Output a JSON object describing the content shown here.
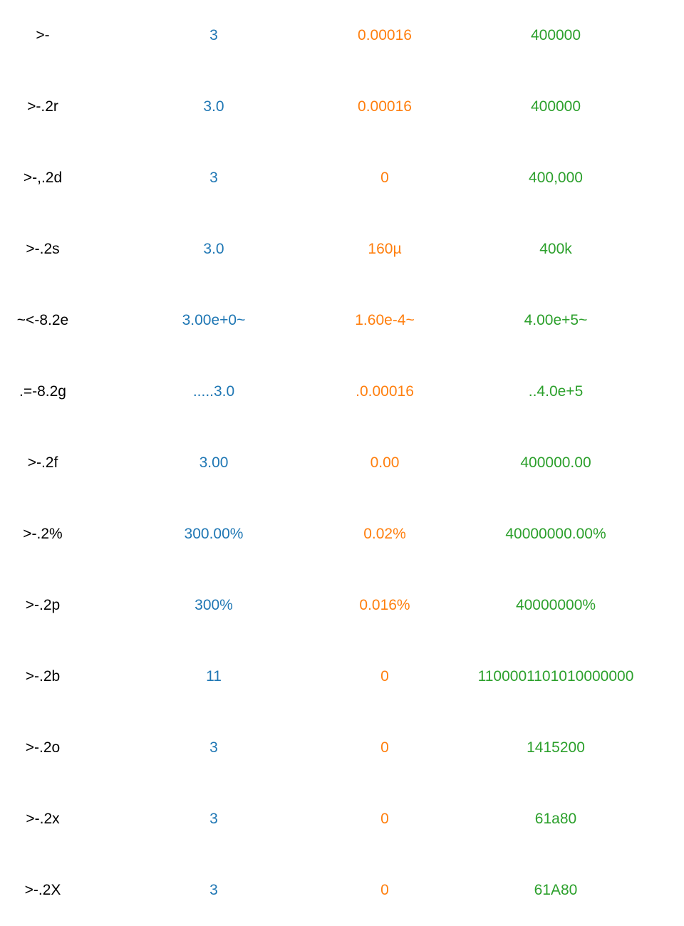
{
  "colors": {
    "spec": "#000000",
    "value_a": "#1f77b4",
    "value_b": "#ff7f0e",
    "value_c": "#2ca02c"
  },
  "rows": [
    {
      "spec": ">-",
      "a": "3",
      "b": "0.00016",
      "c": "400000"
    },
    {
      "spec": ">-.2r",
      "a": "3.0",
      "b": "0.00016",
      "c": "400000"
    },
    {
      "spec": ">-,.2d",
      "a": "3",
      "b": "0",
      "c": "400,000"
    },
    {
      "spec": ">-.2s",
      "a": "3.0",
      "b": "160µ",
      "c": "400k"
    },
    {
      "spec": "~<-8.2e",
      "a": "3.00e+0~",
      "b": "1.60e-4~",
      "c": "4.00e+5~"
    },
    {
      "spec": ".=-8.2g",
      "a": ".....3.0",
      "b": ".0.00016",
      "c": "..4.0e+5"
    },
    {
      "spec": ">-.2f",
      "a": "3.00",
      "b": "0.00",
      "c": "400000.00"
    },
    {
      "spec": ">-.2%",
      "a": "300.00%",
      "b": "0.02%",
      "c": "40000000.00%"
    },
    {
      "spec": ">-.2p",
      "a": "300%",
      "b": "0.016%",
      "c": "40000000%"
    },
    {
      "spec": ">-.2b",
      "a": "11",
      "b": "0",
      "c": "1100001101010000000"
    },
    {
      "spec": ">-.2o",
      "a": "3",
      "b": "0",
      "c": "1415200"
    },
    {
      "spec": ">-.2x",
      "a": "3",
      "b": "0",
      "c": "61a80"
    },
    {
      "spec": ">-.2X",
      "a": "3",
      "b": "0",
      "c": "61A80"
    }
  ]
}
